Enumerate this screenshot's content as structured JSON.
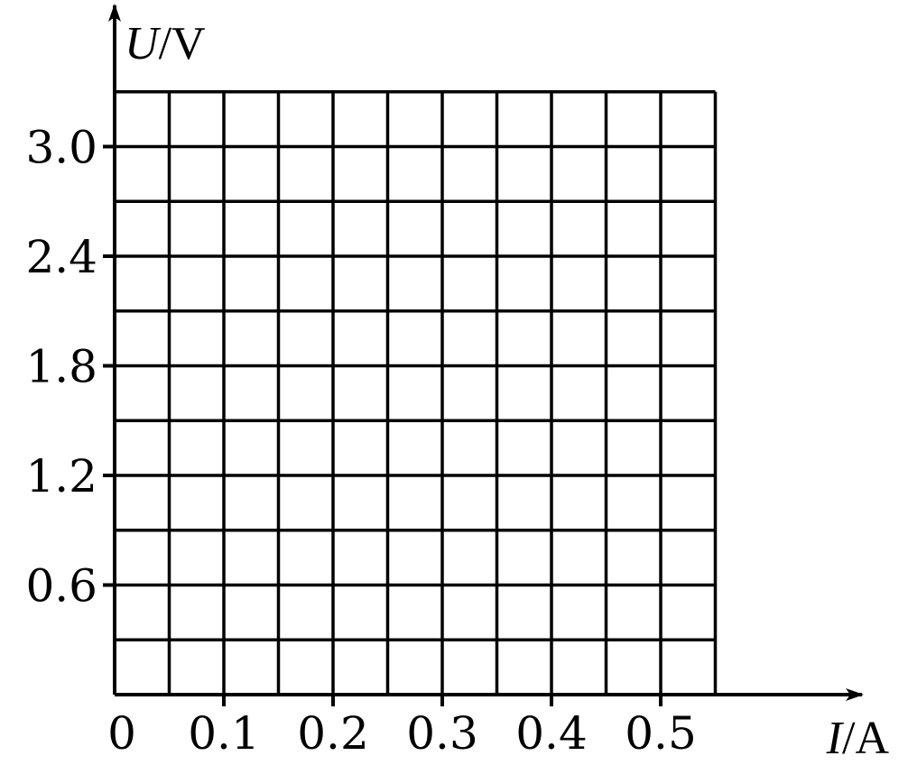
{
  "chart_data": {
    "type": "scatter",
    "title": "",
    "xlabel": {
      "var": "I",
      "unit": "/A"
    },
    "ylabel": {
      "var": "U",
      "unit": "/V"
    },
    "xlim": [
      0,
      0.55
    ],
    "ylim": [
      0,
      3.3
    ],
    "x_grid_step": 0.05,
    "y_grid_step": 0.3,
    "grid": true,
    "origin_label": "0",
    "x_ticks": [
      {
        "value": 0.1,
        "label": "0.1"
      },
      {
        "value": 0.2,
        "label": "0.2"
      },
      {
        "value": 0.3,
        "label": "0.3"
      },
      {
        "value": 0.4,
        "label": "0.4"
      },
      {
        "value": 0.5,
        "label": "0.5"
      }
    ],
    "y_ticks": [
      {
        "value": 0.6,
        "label": "0.6"
      },
      {
        "value": 1.2,
        "label": "1.2"
      },
      {
        "value": 1.8,
        "label": "1.8"
      },
      {
        "value": 2.4,
        "label": "2.4"
      },
      {
        "value": 3.0,
        "label": "3.0"
      }
    ],
    "series": []
  }
}
